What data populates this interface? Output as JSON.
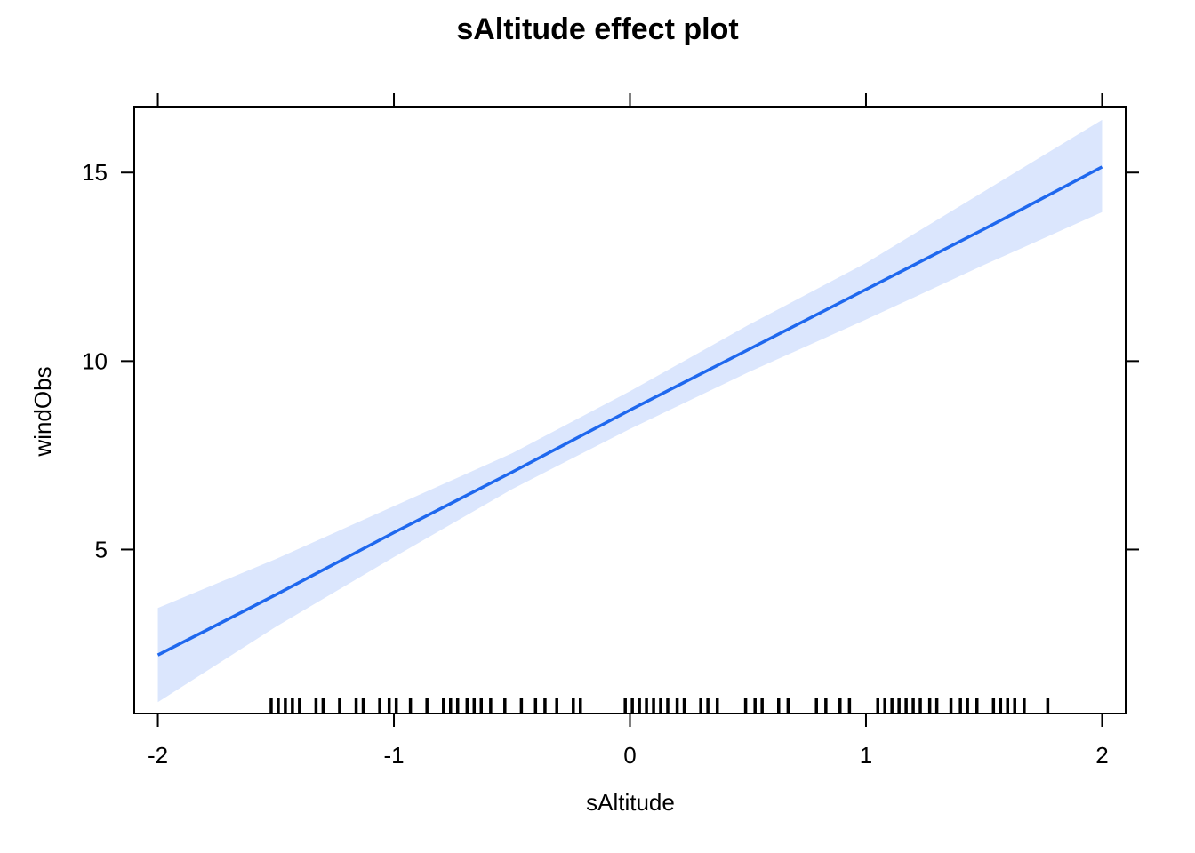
{
  "chart_data": {
    "type": "line",
    "title": "sAltitude effect plot",
    "xlabel": "sAltitude",
    "ylabel": "windObs",
    "xlim": [
      -2.1,
      2.1
    ],
    "ylim": [
      0.65,
      16.75
    ],
    "x_ticks": [
      -2,
      -1,
      0,
      1,
      2
    ],
    "x_tick_labels": [
      "-2",
      "-1",
      "0",
      "1",
      "2"
    ],
    "y_ticks": [
      5,
      10,
      15
    ],
    "y_tick_labels": [
      "5",
      "10",
      "15"
    ],
    "grid": false,
    "line_color": "#1f68ee",
    "band_color": "#dbe6fd",
    "series": [
      {
        "x": [
          -2,
          -1.5,
          -1,
          -0.5,
          0,
          0.5,
          1,
          1.5,
          2
        ],
        "fit": [
          2.2,
          3.8,
          5.45,
          7.05,
          8.7,
          10.3,
          11.9,
          13.5,
          15.15
        ],
        "lower": [
          0.95,
          2.95,
          4.8,
          6.6,
          8.2,
          9.7,
          11.1,
          12.55,
          13.95
        ],
        "upper": [
          3.45,
          4.75,
          6.15,
          7.55,
          9.2,
          10.95,
          12.6,
          14.5,
          16.4
        ]
      }
    ],
    "rug": [
      -1.52,
      -1.49,
      -1.46,
      -1.43,
      -1.4,
      -1.33,
      -1.3,
      -1.23,
      -1.16,
      -1.13,
      -1.06,
      -1.02,
      -0.99,
      -0.93,
      -0.86,
      -0.79,
      -0.76,
      -0.73,
      -0.69,
      -0.66,
      -0.63,
      -0.59,
      -0.53,
      -0.46,
      -0.4,
      -0.36,
      -0.31,
      -0.24,
      -0.21,
      -0.02,
      0.01,
      0.04,
      0.07,
      0.1,
      0.13,
      0.16,
      0.2,
      0.23,
      0.3,
      0.33,
      0.37,
      0.49,
      0.53,
      0.56,
      0.63,
      0.67,
      0.79,
      0.83,
      0.89,
      0.93,
      1.05,
      1.08,
      1.11,
      1.14,
      1.17,
      1.2,
      1.23,
      1.27,
      1.3,
      1.36,
      1.4,
      1.43,
      1.47,
      1.54,
      1.57,
      1.6,
      1.63,
      1.67,
      1.77
    ]
  }
}
